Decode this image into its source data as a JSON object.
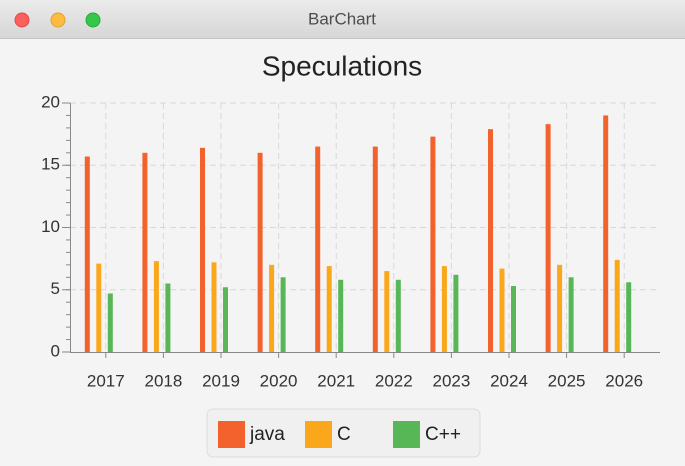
{
  "window_title": "BarChart",
  "chart_data": {
    "type": "bar",
    "title": "Speculations",
    "categories": [
      "2017",
      "2018",
      "2019",
      "2020",
      "2021",
      "2022",
      "2023",
      "2024",
      "2025",
      "2026"
    ],
    "series": [
      {
        "name": "java",
        "color": "#f3622d",
        "values": [
          15.7,
          16,
          16.4,
          16,
          16.5,
          16.5,
          17.3,
          17.9,
          18.3,
          19
        ]
      },
      {
        "name": "C",
        "color": "#fba71b",
        "values": [
          7.1,
          7.3,
          7.2,
          7,
          6.9,
          6.5,
          6.9,
          6.7,
          7,
          7.4
        ]
      },
      {
        "name": "C++",
        "color": "#57b757",
        "values": [
          4.7,
          5.5,
          5.2,
          6,
          5.8,
          5.8,
          6.2,
          5.3,
          6,
          5.6
        ]
      }
    ],
    "ylim": [
      0,
      20
    ],
    "yticks": [
      0,
      5,
      10,
      15,
      20
    ],
    "grid": true,
    "legend": "bottom"
  }
}
